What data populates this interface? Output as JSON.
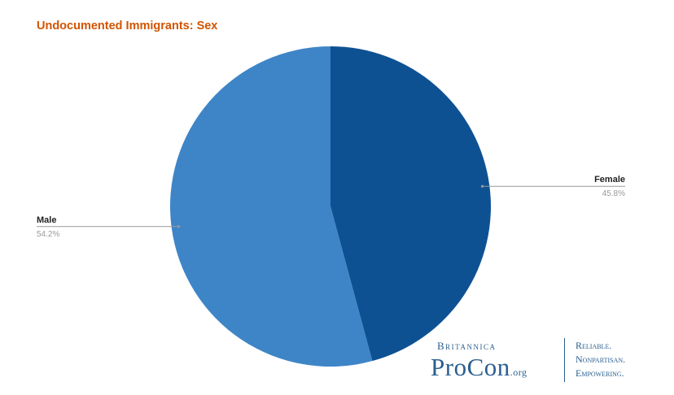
{
  "chart_data": {
    "type": "pie",
    "title": "Undocumented Immigrants: Sex",
    "slices": [
      {
        "label": "Female",
        "value": 45.8,
        "display": "45.8%",
        "color": "#0e5193"
      },
      {
        "label": "Male",
        "value": 54.2,
        "display": "54.2%",
        "color": "#3e85c7"
      }
    ],
    "start_angle_deg": 0,
    "direction": "clockwise",
    "leader_line_color": "#999999"
  },
  "logo": {
    "brand": "Britannica",
    "name": "ProCon",
    "suffix": ".org",
    "tagline": [
      "Reliable.",
      "Nonpartisan.",
      "Empowering."
    ],
    "color": "#2a5f8f"
  },
  "title_color": "#d35400"
}
